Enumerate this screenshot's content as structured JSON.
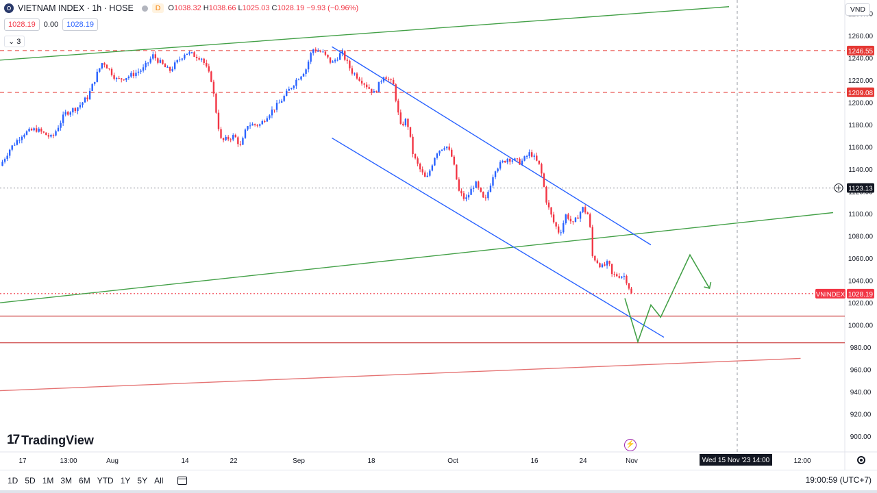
{
  "header": {
    "symbol": "VIETNAM INDEX · 1h · HOSE",
    "interval_badge": "D",
    "ohlc": [
      {
        "k": "O",
        "v": "1038.32"
      },
      {
        "k": "H",
        "v": "1038.66"
      },
      {
        "k": "L",
        "v": "1025.03"
      },
      {
        "k": "C",
        "v": "1028.19"
      }
    ],
    "change": "−9.93 (−0.96%)",
    "bid": "1028.19",
    "spread": "0.00",
    "ask": "1028.19",
    "indicators": "3"
  },
  "currency": "VND",
  "logo_text": "TradingView",
  "toolbar": {
    "timeframes": [
      "1D",
      "5D",
      "1M",
      "3M",
      "6M",
      "YTD",
      "1Y",
      "5Y",
      "All"
    ],
    "clock": "19:00:59 (UTC+7)"
  },
  "colors": {
    "up": "#2962ff",
    "down": "#f23645",
    "green_line": "#43a047",
    "blue_line": "#2962ff",
    "red_dash": "#e53935",
    "red_solid": "#c62828"
  },
  "chart_data": {
    "type": "candlestick",
    "y_range": [
      886,
      1292
    ],
    "y_ticks": [
      1280,
      1260,
      1240,
      1220,
      1200,
      1180,
      1160,
      1140,
      1120,
      1100,
      1080,
      1060,
      1040,
      1020,
      1000,
      980,
      960,
      940,
      920,
      900
    ],
    "x_ticks": [
      "17",
      "13:00",
      "Aug",
      "14",
      "22",
      "Sep",
      "18",
      "Oct",
      "16",
      "24",
      "Nov",
      "12:00"
    ],
    "crosshair_time": "Wed 15 Nov '23  14:00",
    "price_labels": [
      {
        "label": "",
        "value": "1246.55",
        "color": "#e53935"
      },
      {
        "label": "",
        "value": "1209.08",
        "color": "#e53935"
      },
      {
        "label": "",
        "value": "1123.13",
        "color": "#131722"
      },
      {
        "label": "VNINDEX",
        "value": "1028.19",
        "color": "#f23645"
      }
    ],
    "horizontal_levels": [
      {
        "value": 1246.55,
        "style": "dashed",
        "color": "#e53935"
      },
      {
        "value": 1209.08,
        "style": "dashed",
        "color": "#e53935"
      },
      {
        "value": 1123.13,
        "style": "dotted",
        "color": "#9598a1"
      },
      {
        "value": 1028.19,
        "style": "dotted",
        "color": "#f23645"
      },
      {
        "value": 1008,
        "style": "solid",
        "color": "#c62828"
      },
      {
        "value": 984,
        "style": "solid",
        "color": "#c62828"
      }
    ],
    "price_path": [
      [
        0,
        1143
      ],
      [
        0.015,
        1158
      ],
      [
        0.035,
        1172
      ],
      [
        0.055,
        1176
      ],
      [
        0.08,
        1168
      ],
      [
        0.1,
        1190
      ],
      [
        0.12,
        1196
      ],
      [
        0.135,
        1205
      ],
      [
        0.15,
        1227
      ],
      [
        0.158,
        1237
      ],
      [
        0.18,
        1220
      ],
      [
        0.2,
        1224
      ],
      [
        0.22,
        1230
      ],
      [
        0.235,
        1242
      ],
      [
        0.26,
        1228
      ],
      [
        0.285,
        1245
      ],
      [
        0.31,
        1240
      ],
      [
        0.325,
        1220
      ],
      [
        0.335,
        1180
      ],
      [
        0.34,
        1165
      ],
      [
        0.36,
        1170
      ],
      [
        0.37,
        1160
      ],
      [
        0.38,
        1180
      ],
      [
        0.4,
        1180
      ],
      [
        0.41,
        1188
      ],
      [
        0.43,
        1200
      ],
      [
        0.455,
        1220
      ],
      [
        0.47,
        1230
      ],
      [
        0.48,
        1248
      ],
      [
        0.495,
        1245
      ],
      [
        0.51,
        1235
      ],
      [
        0.525,
        1245
      ],
      [
        0.54,
        1228
      ],
      [
        0.555,
        1220
      ],
      [
        0.575,
        1208
      ],
      [
        0.59,
        1225
      ],
      [
        0.605,
        1215
      ],
      [
        0.615,
        1178
      ],
      [
        0.625,
        1185
      ],
      [
        0.635,
        1152
      ],
      [
        0.645,
        1140
      ],
      [
        0.655,
        1130
      ],
      [
        0.67,
        1155
      ],
      [
        0.685,
        1162
      ],
      [
        0.695,
        1150
      ],
      [
        0.705,
        1120
      ],
      [
        0.715,
        1112
      ],
      [
        0.73,
        1128
      ],
      [
        0.745,
        1110
      ],
      [
        0.76,
        1140
      ],
      [
        0.78,
        1150
      ],
      [
        0.8,
        1146
      ],
      [
        0.815,
        1155
      ],
      [
        0.83,
        1142
      ],
      [
        0.84,
        1110
      ],
      [
        0.85,
        1093
      ],
      [
        0.86,
        1082
      ],
      [
        0.87,
        1100
      ],
      [
        0.88,
        1090
      ],
      [
        0.895,
        1105
      ],
      [
        0.905,
        1098
      ],
      [
        0.91,
        1062
      ],
      [
        0.925,
        1052
      ],
      [
        0.935,
        1056
      ],
      [
        0.94,
        1045
      ],
      [
        0.96,
        1044
      ],
      [
        0.97,
        1028
      ]
    ],
    "trendlines": [
      {
        "name": "",
        "color": "#43a047",
        "points": [
          [
            0,
            1238
          ],
          [
            1.12,
            1286
          ]
        ]
      },
      {
        "name": "",
        "color": "#43a047",
        "points": [
          [
            0,
            1020
          ],
          [
            1.28,
            1101
          ]
        ]
      },
      {
        "name": "",
        "color": "#e57373",
        "points": [
          [
            0,
            941
          ],
          [
            1.23,
            970
          ]
        ]
      },
      {
        "name": "",
        "color": "#2962ff",
        "points": [
          [
            0.51,
            1250
          ],
          [
            1.0,
            1072
          ]
        ]
      },
      {
        "name": "",
        "color": "#2962ff",
        "points": [
          [
            0.51,
            1168
          ],
          [
            1.02,
            989
          ]
        ]
      }
    ],
    "projection": [
      [
        0.96,
        1024
      ],
      [
        0.98,
        985
      ],
      [
        1.0,
        1018
      ],
      [
        1.015,
        1007
      ],
      [
        1.06,
        1063
      ],
      [
        1.09,
        1033
      ]
    ]
  }
}
